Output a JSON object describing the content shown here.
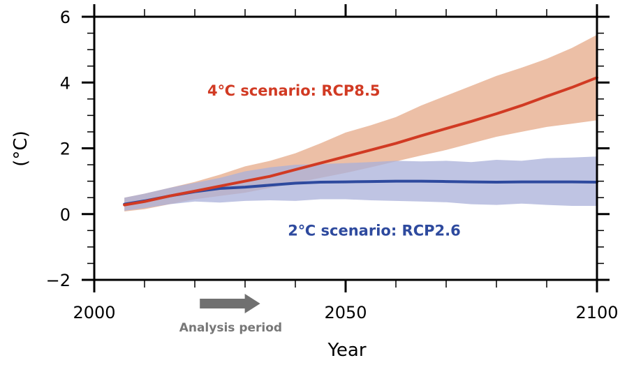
{
  "chart_data": {
    "type": "area",
    "title": "",
    "xlabel": "Year",
    "ylabel": "(°C)",
    "xlim": [
      2000,
      2100
    ],
    "ylim": [
      -2,
      6
    ],
    "x_ticks": [
      2000,
      2050,
      2100
    ],
    "x_tick_labels": [
      "2000",
      "2050",
      "2100"
    ],
    "x_minor_step": 10,
    "y_ticks": [
      -2,
      0,
      2,
      4,
      6
    ],
    "y_tick_labels": [
      "−2",
      "0",
      "2",
      "4",
      "6"
    ],
    "y_minor_step": 0.5,
    "grid": false,
    "legend": "none (inline annotations)",
    "x": [
      2006,
      2010,
      2015,
      2020,
      2025,
      2030,
      2035,
      2040,
      2045,
      2050,
      2055,
      2060,
      2065,
      2070,
      2075,
      2080,
      2085,
      2090,
      2095,
      2100
    ],
    "series": [
      {
        "name": "4℃ scenario: RCP8.5",
        "color": "#d13a23",
        "band_color": "#e9b497",
        "mean": [
          0.28,
          0.38,
          0.55,
          0.7,
          0.85,
          1.0,
          1.15,
          1.35,
          1.55,
          1.75,
          1.95,
          2.15,
          2.38,
          2.6,
          2.82,
          3.05,
          3.3,
          3.58,
          3.85,
          4.15
        ],
        "upper": [
          0.5,
          0.62,
          0.8,
          0.98,
          1.2,
          1.45,
          1.62,
          1.85,
          2.15,
          2.48,
          2.7,
          2.95,
          3.3,
          3.6,
          3.9,
          4.2,
          4.45,
          4.72,
          5.05,
          5.45
        ],
        "lower": [
          0.08,
          0.15,
          0.3,
          0.45,
          0.55,
          0.65,
          0.8,
          0.95,
          1.1,
          1.25,
          1.42,
          1.6,
          1.78,
          1.95,
          2.15,
          2.35,
          2.5,
          2.65,
          2.75,
          2.85
        ]
      },
      {
        "name": "2℃ scenario: RCP2.6",
        "color": "#2e4a9e",
        "band_color": "#a9b0da",
        "mean": [
          0.3,
          0.4,
          0.55,
          0.68,
          0.78,
          0.82,
          0.88,
          0.94,
          0.97,
          0.98,
          0.99,
          1.0,
          1.0,
          0.99,
          0.98,
          0.97,
          0.98,
          0.98,
          0.98,
          0.97
        ],
        "upper": [
          0.5,
          0.62,
          0.8,
          0.95,
          1.1,
          1.3,
          1.42,
          1.5,
          1.52,
          1.55,
          1.58,
          1.62,
          1.6,
          1.62,
          1.58,
          1.65,
          1.62,
          1.7,
          1.72,
          1.75
        ],
        "lower": [
          0.1,
          0.18,
          0.3,
          0.38,
          0.35,
          0.4,
          0.42,
          0.4,
          0.45,
          0.45,
          0.42,
          0.4,
          0.38,
          0.36,
          0.3,
          0.28,
          0.32,
          0.28,
          0.25,
          0.25
        ]
      }
    ],
    "annotations": [
      {
        "text": "4℃ scenario: RCP8.5",
        "color": "#d13a23",
        "x": 2022.5,
        "y": 3.6
      },
      {
        "text": "2℃ scenario: RCP2.6",
        "color": "#2e4a9e",
        "x": 2038.5,
        "y": -0.65
      },
      {
        "text": "Analysis period",
        "color": "#777777",
        "arrow_from": 2021,
        "arrow_to": 2033
      }
    ]
  }
}
